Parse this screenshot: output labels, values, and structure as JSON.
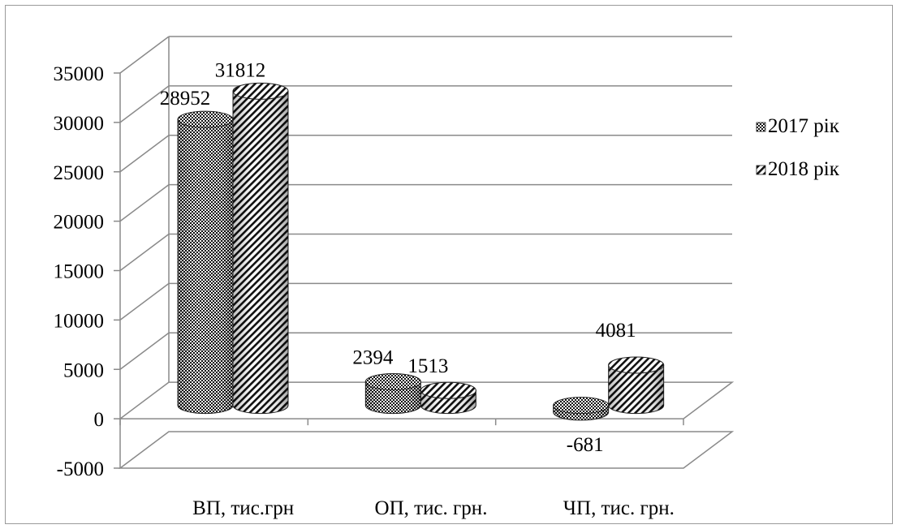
{
  "chart_data": {
    "type": "bar",
    "title": "",
    "xlabel": "",
    "ylabel": "",
    "categories": [
      "ВП, тис.грн",
      "ОП, тис. грн.",
      "ЧП, тис. грн."
    ],
    "series": [
      {
        "name": "2017 рік",
        "values": [
          28952,
          2394,
          -681
        ],
        "data_labels": [
          "28952",
          "2394",
          "-681"
        ]
      },
      {
        "name": "2018 рік",
        "values": [
          31812,
          1513,
          4081
        ],
        "data_labels": [
          "31812",
          "1513",
          "4081"
        ]
      }
    ],
    "ylim": [
      -5000,
      35000
    ],
    "yticks": [
      -5000,
      0,
      5000,
      10000,
      15000,
      20000,
      25000,
      30000,
      35000
    ],
    "ytick_labels": [
      "-5000",
      "0",
      "5000",
      "10000",
      "15000",
      "20000",
      "25000",
      "30000",
      "35000"
    ],
    "grid": true,
    "legend_position": "right",
    "style": "3d-cylinder, patterned fills"
  }
}
